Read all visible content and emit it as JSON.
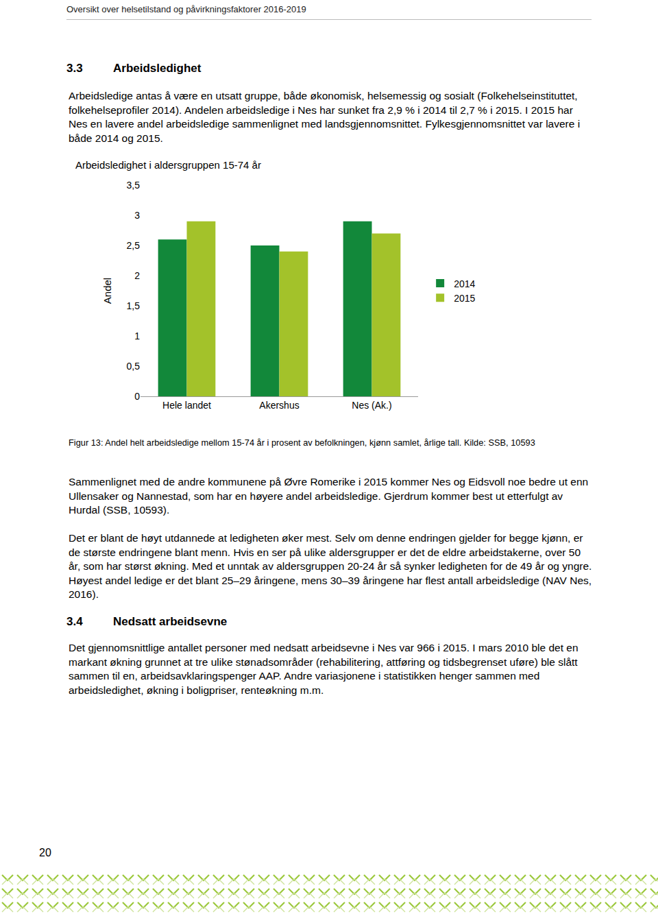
{
  "header": "Oversikt over helsetilstand og påvirkningsfaktorer 2016-2019",
  "section_1": {
    "number": "3.3",
    "title": "Arbeidsledighet",
    "intro": "Arbeidsledige antas å være en utsatt gruppe, både økonomisk, helsemessig og sosialt (Folkehelseinstituttet, folkehelseprofiler 2014). Andelen arbeidsledige i Nes har sunket fra 2,9 % i 2014 til 2,7 % i 2015. I 2015 har Nes en lavere andel arbeidsledige sammenlignet med landsgjennomsnittet. Fylkesgjennomsnittet var lavere i både 2014 og 2015."
  },
  "chart_data": {
    "type": "bar",
    "title": "Arbeidsledighet i aldersgruppen 15-74 år",
    "y_label": "Andel",
    "categories": [
      "Hele landet",
      "Akershus",
      "Nes (Ak.)"
    ],
    "series": [
      {
        "name": "2014",
        "color": "#12883a",
        "values": [
          2.6,
          2.5,
          2.9
        ]
      },
      {
        "name": "2015",
        "color": "#a3c22a",
        "values": [
          2.9,
          2.4,
          2.7
        ]
      }
    ],
    "ylim": [
      0,
      3.5
    ],
    "yticks": [
      0,
      {
        "value": 0.5,
        "label": "0,5"
      },
      1,
      {
        "value": 1.5,
        "label": "1,5"
      },
      2,
      {
        "value": 2.5,
        "label": "2,5"
      },
      3,
      {
        "value": 3.5,
        "label": "3,5"
      }
    ],
    "grid": false,
    "legend": "right"
  },
  "caption": "Figur 13: Andel helt arbeidsledige mellom 15-74 år i prosent av befolkningen, kjønn samlet, årlige tall. Kilde: SSB, 10593",
  "section_1_paragraphs": [
    "Sammenlignet med de andre kommunene på Øvre Romerike i 2015 kommer Nes og Eidsvoll noe bedre ut enn Ullensaker og Nannestad, som har en høyere andel arbeidsledige. Gjerdrum kommer best ut etterfulgt av Hurdal (SSB, 10593).",
    "Det er blant de høyt utdannede at ledigheten øker mest. Selv om denne endringen gjelder for begge kjønn, er de største endringene blant menn. Hvis en ser på ulike aldersgrupper er det de eldre arbeidstakerne, over 50 år, som har størst økning. Med et unntak av aldersgruppen 20-24 år så synker ledigheten for de 49 år og yngre. Høyest andel ledige er det blant 25–29 åringene, mens 30–39 åringene har flest antall arbeidsledige (NAV Nes, 2016)."
  ],
  "section_2": {
    "number": "3.4",
    "title": "Nedsatt arbeidsevne",
    "paragraphs": [
      "Det gjennomsnittlige antallet personer med nedsatt arbeidsevne i Nes var 966 i 2015. I mars 2010 ble det en markant økning grunnet at tre ulike stønadsområder (rehabilitering, attføring og tidsbegrenset uføre) ble slått sammen til en, arbeidsavklaringspenger AAP. Andre variasjonene i statistikken henger sammen med arbeidsledighet, økning i boligpriser, renteøkning m.m."
    ]
  },
  "page_number": 20
}
